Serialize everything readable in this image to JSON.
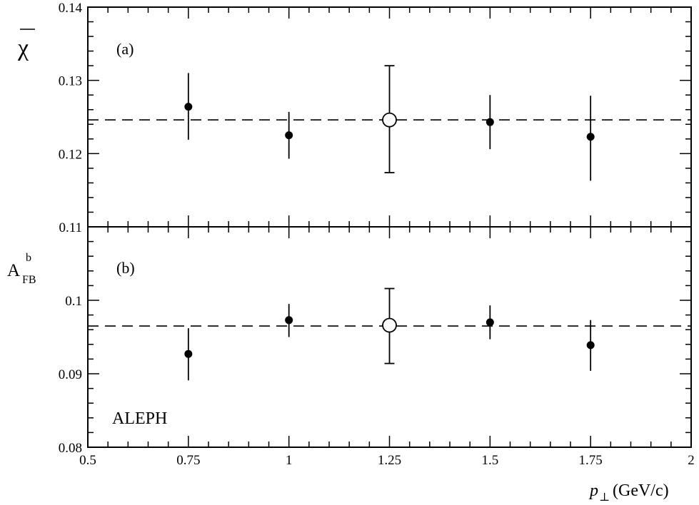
{
  "chart_data": [
    {
      "type": "scatter",
      "panel_label": "(a)",
      "ylabel": "χ",
      "ylim": [
        0.11,
        0.14
      ],
      "yticks": [
        0.11,
        0.12,
        0.13,
        0.14
      ],
      "ytick_labels": [
        "0.11",
        "0.12",
        "0.13",
        "0.14"
      ],
      "reference_line": 0.1246,
      "points": [
        {
          "x": 0.75,
          "y": 0.1264,
          "err_low": 0.1219,
          "err_high": 0.131,
          "marker": "filled"
        },
        {
          "x": 1.0,
          "y": 0.1225,
          "err_low": 0.1193,
          "err_high": 0.1257,
          "marker": "filled"
        },
        {
          "x": 1.25,
          "y": 0.1246,
          "err_low": 0.1174,
          "err_high": 0.132,
          "marker": "open"
        },
        {
          "x": 1.5,
          "y": 0.1243,
          "err_low": 0.1206,
          "err_high": 0.128,
          "marker": "filled"
        },
        {
          "x": 1.75,
          "y": 0.1223,
          "err_low": 0.1163,
          "err_high": 0.1279,
          "marker": "filled"
        }
      ]
    },
    {
      "type": "scatter",
      "panel_label": "(b)",
      "ylabel_main": "A",
      "ylabel_sup": "b",
      "ylabel_sub": "FB",
      "ylim": [
        0.08,
        0.11
      ],
      "yticks": [
        0.08,
        0.09,
        0.1
      ],
      "ytick_labels": [
        "0.08",
        "0.09",
        "0.1"
      ],
      "reference_line": 0.0965,
      "annotation": "ALEPH",
      "points": [
        {
          "x": 0.75,
          "y": 0.0927,
          "err_low": 0.0891,
          "err_high": 0.0962,
          "marker": "filled"
        },
        {
          "x": 1.0,
          "y": 0.0973,
          "err_low": 0.095,
          "err_high": 0.0995,
          "marker": "filled"
        },
        {
          "x": 1.25,
          "y": 0.0966,
          "err_low": 0.0914,
          "err_high": 0.1016,
          "marker": "open"
        },
        {
          "x": 1.5,
          "y": 0.097,
          "err_low": 0.0947,
          "err_high": 0.0993,
          "marker": "filled"
        },
        {
          "x": 1.75,
          "y": 0.0939,
          "err_low": 0.0904,
          "err_high": 0.0973,
          "marker": "filled"
        }
      ]
    }
  ],
  "x_axis": {
    "xlim": [
      0.5,
      2.0
    ],
    "ticks": [
      0.5,
      0.75,
      1.0,
      1.25,
      1.5,
      1.75,
      2.0
    ],
    "tick_labels": [
      "0.5",
      "0.75",
      "1",
      "1.25",
      "1.5",
      "1.75",
      "2"
    ],
    "label_symbol": "p",
    "label_subscript": "⊥",
    "label_unit": "(GeV/c)"
  }
}
